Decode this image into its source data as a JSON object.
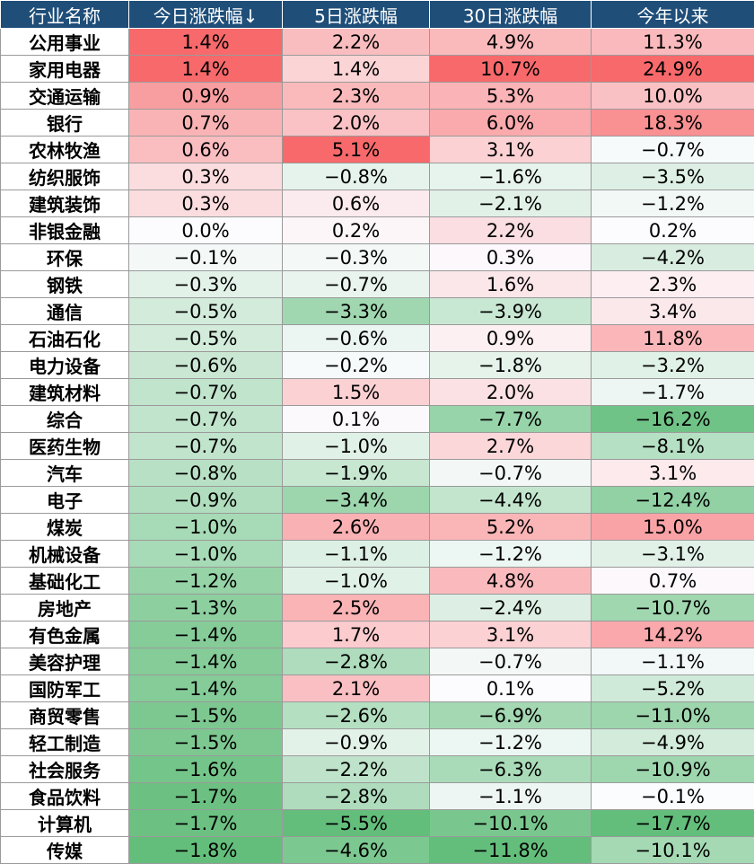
{
  "chart_data": {
    "type": "table",
    "columns": [
      "行业名称",
      "今日涨跌幅↓",
      "5日涨跌幅",
      "30日涨跌幅",
      "今年以来"
    ],
    "rows": [
      [
        "公用事业",
        "1.4%",
        "2.2%",
        "4.9%",
        "11.3%"
      ],
      [
        "家用电器",
        "1.4%",
        "1.4%",
        "10.7%",
        "24.9%"
      ],
      [
        "交通运输",
        "0.9%",
        "2.3%",
        "5.3%",
        "10.0%"
      ],
      [
        "银行",
        "0.7%",
        "2.0%",
        "6.0%",
        "18.3%"
      ],
      [
        "农林牧渔",
        "0.6%",
        "5.1%",
        "3.1%",
        "−0.7%"
      ],
      [
        "纺织服饰",
        "0.3%",
        "−0.8%",
        "−1.6%",
        "−3.5%"
      ],
      [
        "建筑装饰",
        "0.3%",
        "0.6%",
        "−2.1%",
        "−1.2%"
      ],
      [
        "非银金融",
        "0.0%",
        "0.2%",
        "2.2%",
        "0.2%"
      ],
      [
        "环保",
        "−0.1%",
        "−0.3%",
        "0.3%",
        "−4.2%"
      ],
      [
        "钢铁",
        "−0.3%",
        "−0.7%",
        "1.6%",
        "2.3%"
      ],
      [
        "通信",
        "−0.5%",
        "−3.3%",
        "−3.9%",
        "3.4%"
      ],
      [
        "石油石化",
        "−0.5%",
        "−0.6%",
        "0.9%",
        "11.8%"
      ],
      [
        "电力设备",
        "−0.6%",
        "−0.2%",
        "−1.8%",
        "−3.2%"
      ],
      [
        "建筑材料",
        "−0.7%",
        "1.5%",
        "2.0%",
        "−1.7%"
      ],
      [
        "综合",
        "−0.7%",
        "0.1%",
        "−7.7%",
        "−16.2%"
      ],
      [
        "医药生物",
        "−0.7%",
        "−1.0%",
        "2.7%",
        "−8.1%"
      ],
      [
        "汽车",
        "−0.8%",
        "−1.9%",
        "−0.7%",
        "3.1%"
      ],
      [
        "电子",
        "−0.9%",
        "−3.4%",
        "−4.4%",
        "−12.4%"
      ],
      [
        "煤炭",
        "−1.0%",
        "2.6%",
        "5.2%",
        "15.0%"
      ],
      [
        "机械设备",
        "−1.0%",
        "−1.1%",
        "−1.2%",
        "−3.1%"
      ],
      [
        "基础化工",
        "−1.2%",
        "−1.0%",
        "4.8%",
        "0.7%"
      ],
      [
        "房地产",
        "−1.3%",
        "2.5%",
        "−2.4%",
        "−10.7%"
      ],
      [
        "有色金属",
        "−1.4%",
        "1.7%",
        "3.1%",
        "14.2%"
      ],
      [
        "美容护理",
        "−1.4%",
        "−2.8%",
        "−0.7%",
        "−1.1%"
      ],
      [
        "国防军工",
        "−1.4%",
        "2.1%",
        "0.1%",
        "−5.2%"
      ],
      [
        "商贸零售",
        "−1.5%",
        "−2.6%",
        "−6.9%",
        "−11.0%"
      ],
      [
        "轻工制造",
        "−1.5%",
        "−0.9%",
        "−1.2%",
        "−4.9%"
      ],
      [
        "社会服务",
        "−1.6%",
        "−2.2%",
        "−6.3%",
        "−10.9%"
      ],
      [
        "食品饮料",
        "−1.7%",
        "−2.8%",
        "−1.1%",
        "−0.1%"
      ],
      [
        "计算机",
        "−1.7%",
        "−5.5%",
        "−10.1%",
        "−17.7%"
      ],
      [
        "传媒",
        "−1.8%",
        "−4.6%",
        "−11.8%",
        "−10.1%"
      ]
    ],
    "color_scale": {
      "positive_max": "#f8696b",
      "neutral": "#fcfcff",
      "negative_max": "#63be7b"
    }
  }
}
